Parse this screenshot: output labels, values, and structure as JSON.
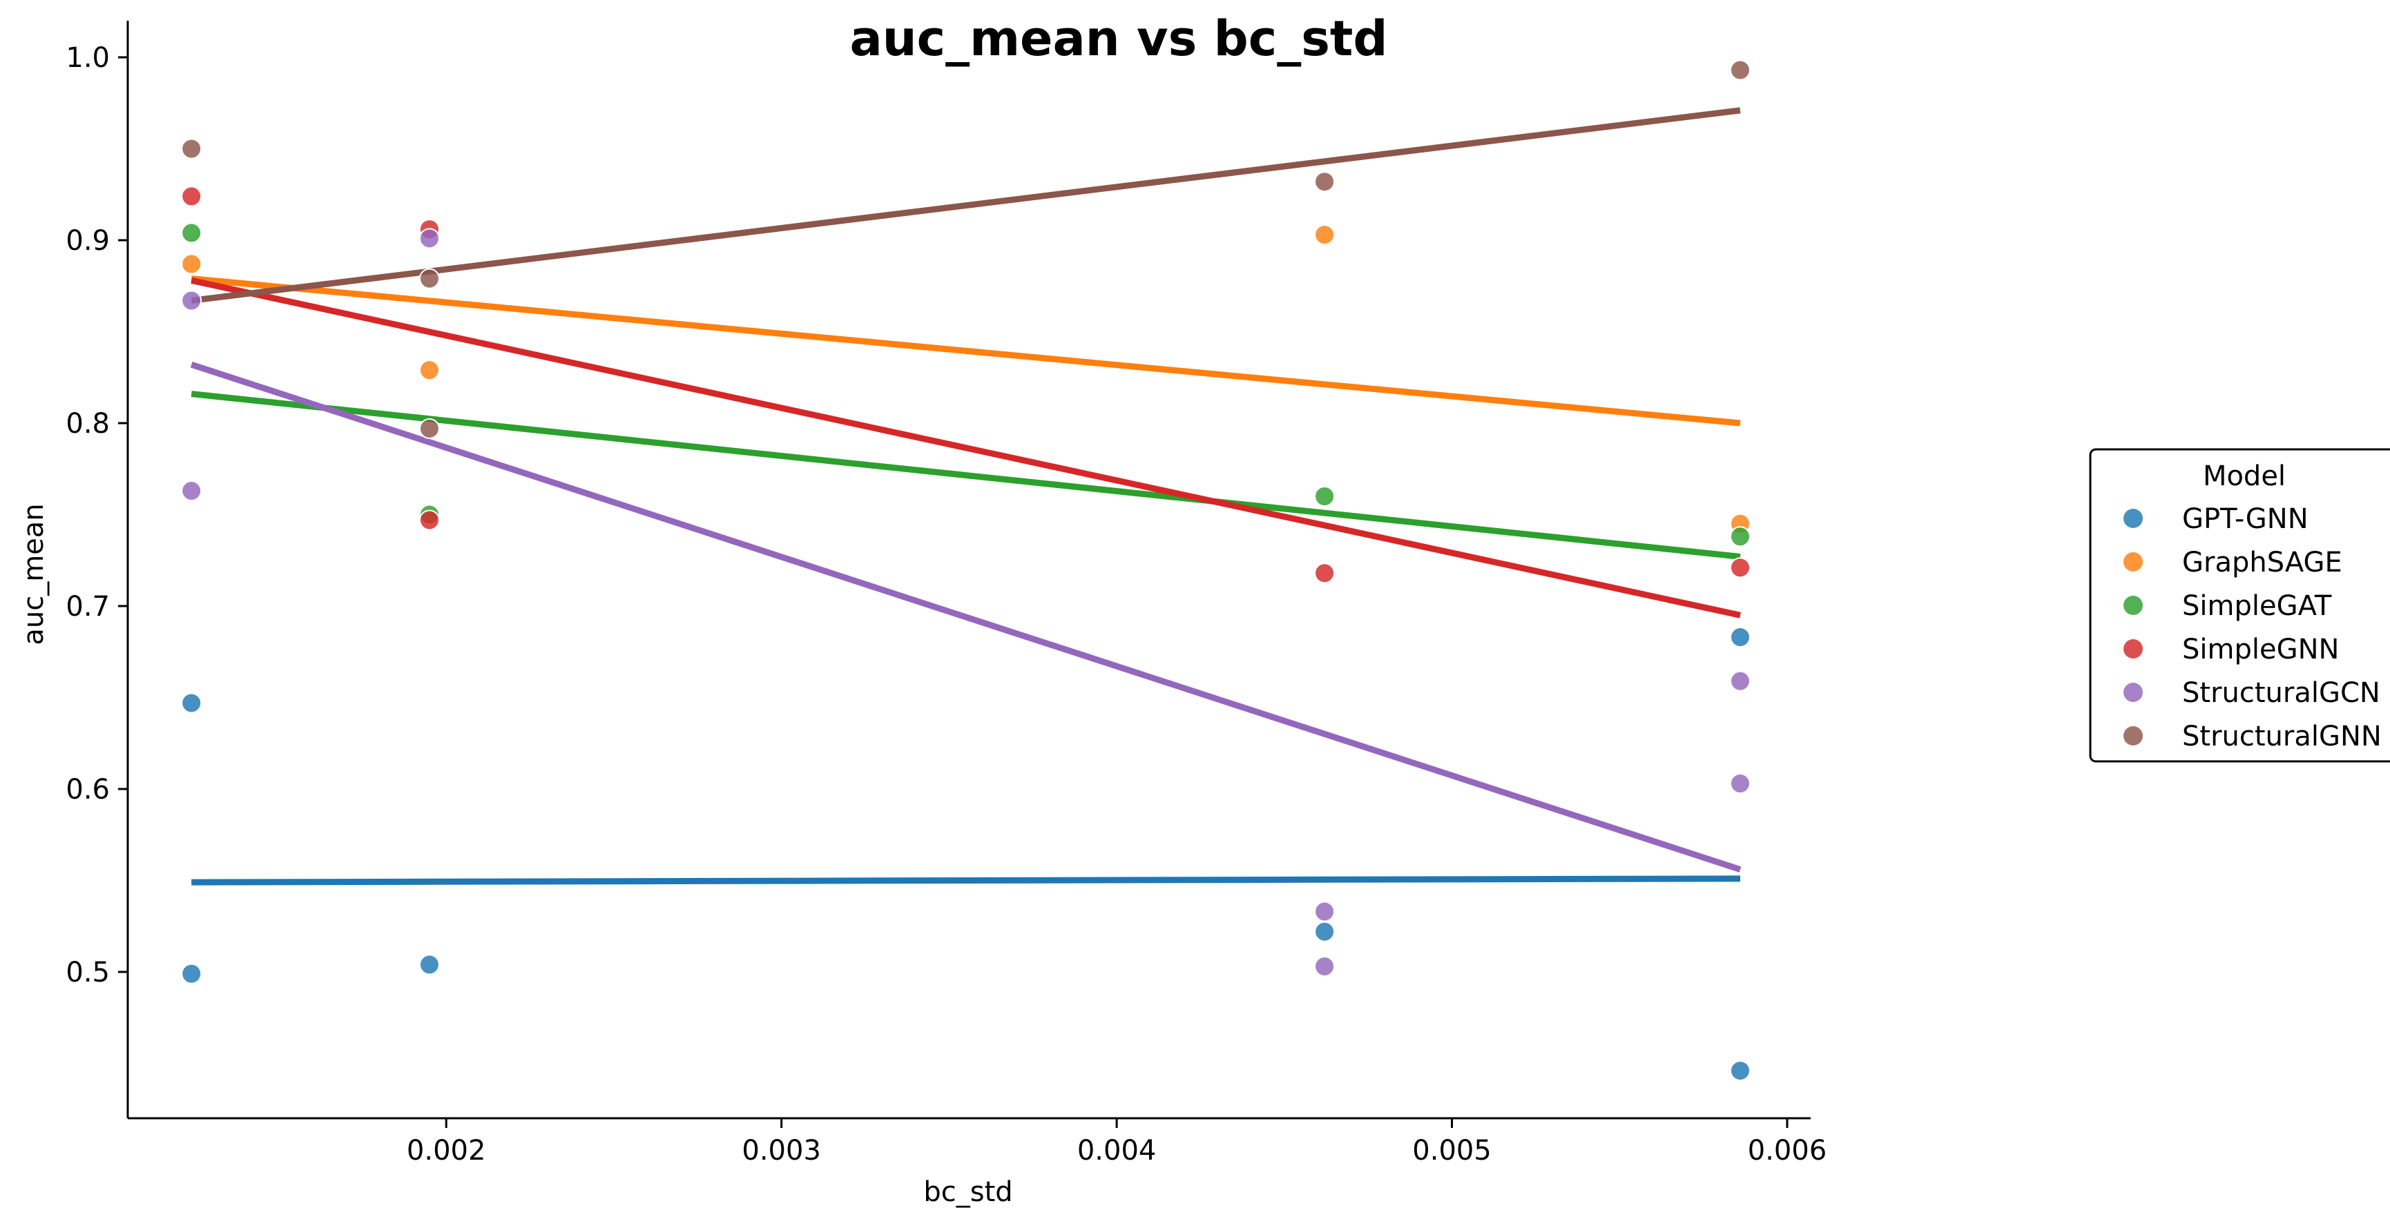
{
  "chart_data": {
    "type": "scatter",
    "title": "auc_mean vs bc_std",
    "xlabel": "bc_std",
    "ylabel": "auc_mean",
    "xlim": [
      0.00105,
      0.00607
    ],
    "ylim": [
      0.42,
      1.02
    ],
    "xticks": [
      0.002,
      0.003,
      0.004,
      0.005,
      0.006
    ],
    "xtick_labels": [
      "0.002",
      "0.003",
      "0.004",
      "0.005",
      "0.006"
    ],
    "yticks": [
      0.5,
      0.6,
      0.7,
      0.8,
      0.9,
      1.0
    ],
    "ytick_labels": [
      "0.5",
      "0.6",
      "0.7",
      "0.8",
      "0.9",
      "1.0"
    ],
    "legend": {
      "title": "Model",
      "position": "center-right"
    },
    "series": [
      {
        "name": "GPT-GNN",
        "color": "#1f77b4",
        "points": [
          [
            0.00124,
            0.647
          ],
          [
            0.00124,
            0.499
          ],
          [
            0.00195,
            0.504
          ],
          [
            0.00462,
            0.522
          ],
          [
            0.00586,
            0.683
          ],
          [
            0.00586,
            0.446
          ]
        ],
        "trend": [
          [
            0.00124,
            0.549
          ],
          [
            0.00586,
            0.551
          ]
        ]
      },
      {
        "name": "GraphSAGE",
        "color": "#ff7f0e",
        "points": [
          [
            0.00124,
            0.887
          ],
          [
            0.00195,
            0.829
          ],
          [
            0.00462,
            0.903
          ],
          [
            0.00586,
            0.745
          ]
        ],
        "trend": [
          [
            0.00124,
            0.879
          ],
          [
            0.00586,
            0.8
          ]
        ]
      },
      {
        "name": "SimpleGAT",
        "color": "#2ca02c",
        "points": [
          [
            0.00124,
            0.904
          ],
          [
            0.00195,
            0.75
          ],
          [
            0.00462,
            0.76
          ],
          [
            0.00586,
            0.738
          ]
        ],
        "trend": [
          [
            0.00124,
            0.816
          ],
          [
            0.00586,
            0.727
          ]
        ]
      },
      {
        "name": "SimpleGNN",
        "color": "#d62728",
        "points": [
          [
            0.00124,
            0.924
          ],
          [
            0.00195,
            0.906
          ],
          [
            0.00195,
            0.747
          ],
          [
            0.00462,
            0.718
          ],
          [
            0.00586,
            0.721
          ]
        ],
        "trend": [
          [
            0.00124,
            0.878
          ],
          [
            0.00586,
            0.695
          ]
        ]
      },
      {
        "name": "StructuralGCN",
        "color": "#9467bd",
        "points": [
          [
            0.00124,
            0.867
          ],
          [
            0.00124,
            0.763
          ],
          [
            0.00195,
            0.901
          ],
          [
            0.00462,
            0.533
          ],
          [
            0.00462,
            0.503
          ],
          [
            0.00586,
            0.659
          ],
          [
            0.00586,
            0.603
          ]
        ],
        "trend": [
          [
            0.00124,
            0.832
          ],
          [
            0.00586,
            0.556
          ]
        ]
      },
      {
        "name": "StructuralGNN",
        "color": "#8c564b",
        "points": [
          [
            0.00124,
            0.95
          ],
          [
            0.00195,
            0.879
          ],
          [
            0.00195,
            0.797
          ],
          [
            0.00462,
            0.932
          ],
          [
            0.00586,
            0.993
          ]
        ],
        "trend": [
          [
            0.00124,
            0.867
          ],
          [
            0.00586,
            0.971
          ]
        ]
      }
    ]
  }
}
